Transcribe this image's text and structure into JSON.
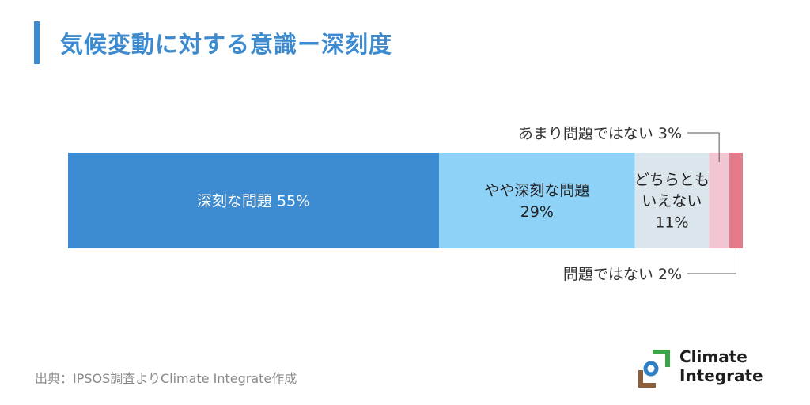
{
  "title": "気候変動に対する意識ー深刻度",
  "chart_data": {
    "type": "bar",
    "orientation": "horizontal-stacked-100",
    "title": "気候変動に対する意識ー深刻度",
    "series": [
      {
        "name": "深刻な問題",
        "value": 55,
        "label": "55%",
        "color": "#3d8bd0",
        "text_color": "#ffffff"
      },
      {
        "name": "やや深刻な問題",
        "value": 29,
        "label": "29%",
        "color": "#8ed2f8",
        "text_color": "#222222"
      },
      {
        "name": "どちらともいえない",
        "value": 11,
        "label": "11%",
        "color": "#dbe5ec",
        "text_color": "#222222"
      },
      {
        "name": "あまり問題ではない",
        "value": 3,
        "label": "3%",
        "color": "#f1c5d1",
        "text_color": "#222222"
      },
      {
        "name": "問題ではない",
        "value": 2,
        "label": "2%",
        "color": "#e47b8a",
        "text_color": "#222222"
      }
    ],
    "segment_labels": [
      [
        "深刻な問題 55%"
      ],
      [
        "やや深刻な問題",
        "29%"
      ],
      [
        "どちらとも",
        "いえない",
        "11%"
      ]
    ],
    "callouts": [
      {
        "text": "あまり問題ではない 3%",
        "series_index": 3,
        "position": "above"
      },
      {
        "text": "問題ではない 2%",
        "series_index": 4,
        "position": "below"
      }
    ],
    "xlim": [
      0,
      100
    ]
  },
  "source": "出典：IPSOS調査よりClimate Integrate作成",
  "logo": {
    "line1": "Climate",
    "line2": "Integrate",
    "colors": {
      "green": "#3aa648",
      "blue": "#2f80c6",
      "brown": "#8b5e3c"
    }
  }
}
